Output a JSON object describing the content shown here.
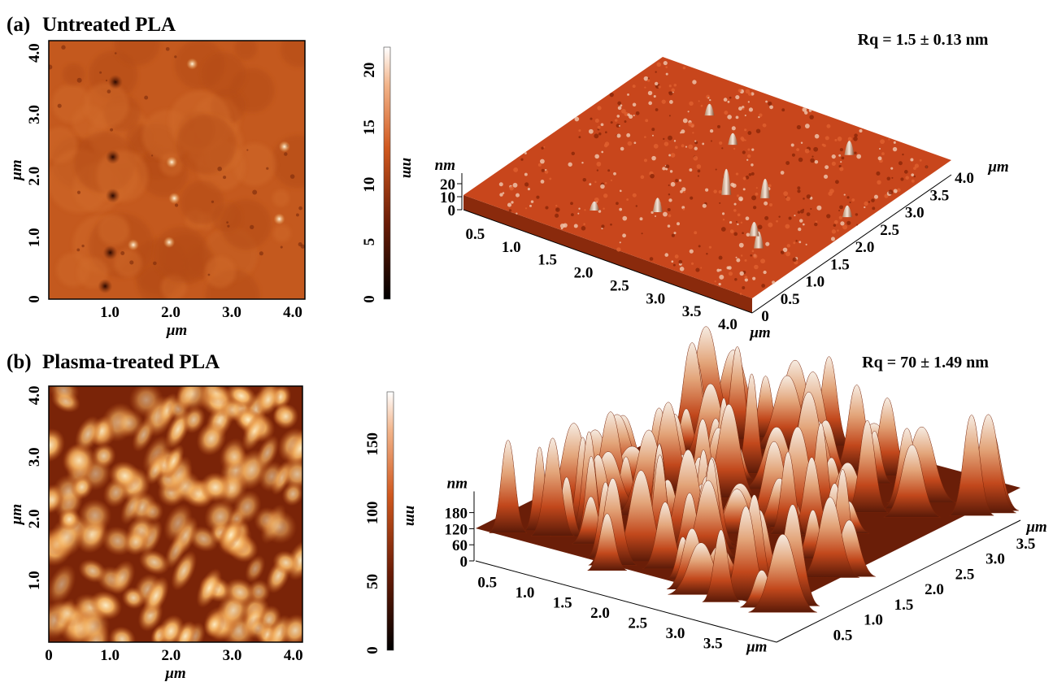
{
  "panels": [
    {
      "label": "(a)",
      "title": "Untreated PLA",
      "rq": "Rq = 1.5 ± 0.13 nm",
      "map": {
        "x_label": "μm",
        "y_label": "μm",
        "x_ticks": [
          "1.0",
          "2.0",
          "3.0",
          "4.0"
        ],
        "y_ticks": [
          "0",
          "1.0",
          "2.0",
          "3.0",
          "4.0"
        ]
      },
      "colorbar": {
        "label": "nm",
        "ticks": [
          "0",
          "5",
          "10",
          "15",
          "20"
        ]
      },
      "surface": {
        "z_label": "nm",
        "z_ticks": [
          "0",
          "10",
          "20"
        ],
        "x_ticks": [
          "0.5",
          "1.0",
          "1.5",
          "2.0",
          "2.5",
          "3.0",
          "3.5",
          "4.0"
        ],
        "y_ticks": [
          "0",
          "0.5",
          "1.0",
          "1.5",
          "2.0",
          "2.5",
          "3.0",
          "3.5",
          "4.0"
        ],
        "x_label": "μm",
        "y_label": "μm"
      }
    },
    {
      "label": "(b)",
      "title": "Plasma-treated PLA",
      "rq": "Rq = 70 ± 1.49 nm",
      "map": {
        "x_label": "μm",
        "y_label": "μm",
        "x_ticks": [
          "0",
          "1.0",
          "2.0",
          "3.0",
          "4.0"
        ],
        "y_ticks": [
          "1.0",
          "2.0",
          "3.0",
          "4.0"
        ]
      },
      "colorbar": {
        "label": "nm",
        "ticks": [
          "0",
          "50",
          "100",
          "150"
        ]
      },
      "surface": {
        "z_label": "nm",
        "z_ticks": [
          "0",
          "60",
          "120",
          "180"
        ],
        "x_ticks": [
          "0.5",
          "1.0",
          "1.5",
          "2.0",
          "2.5",
          "3.0",
          "3.5"
        ],
        "y_ticks": [
          "0.5",
          "1.0",
          "1.5",
          "2.0",
          "2.5",
          "3.0",
          "3.5"
        ],
        "x_label": "μm",
        "y_label": "μm"
      }
    }
  ]
}
